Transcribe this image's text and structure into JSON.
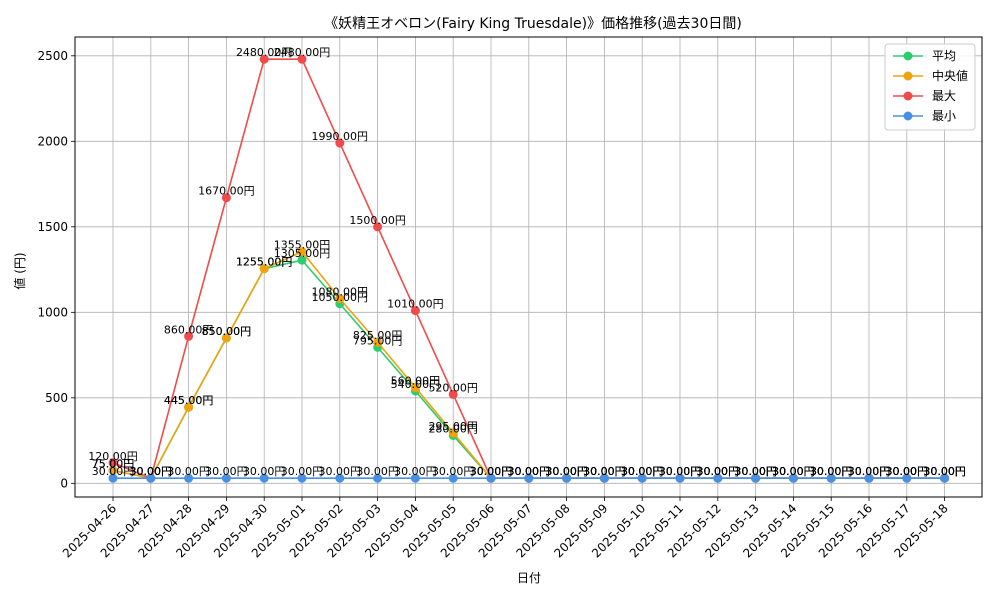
{
  "chart_data": {
    "type": "line",
    "title": "《妖精王オベロン(Fairy King Truesdale)》価格推移(過去30日間)",
    "xlabel": "日付",
    "ylabel": "値 (円)",
    "ylim": [
      -80,
      2610
    ],
    "yticks": [
      0,
      500,
      1000,
      1500,
      2000,
      2500
    ],
    "grid": true,
    "legend_position": "top-right",
    "categories": [
      "2025-04-26",
      "2025-04-27",
      "2025-04-28",
      "2025-04-29",
      "2025-04-30",
      "2025-05-01",
      "2025-05-02",
      "2025-05-03",
      "2025-05-04",
      "2025-05-05",
      "2025-05-06",
      "2025-05-07",
      "2025-05-08",
      "2025-05-09",
      "2025-05-10",
      "2025-05-11",
      "2025-05-12",
      "2025-05-13",
      "2025-05-14",
      "2025-05-15",
      "2025-05-16",
      "2025-05-17",
      "2025-05-18"
    ],
    "series": [
      {
        "name": "平均",
        "color": "#2ecc71",
        "values": [
          75,
          30,
          445,
          850,
          1255,
          1305,
          1050,
          795,
          540,
          280,
          30,
          30,
          30,
          30,
          30,
          30,
          30,
          30,
          30,
          30,
          30,
          30,
          30
        ]
      },
      {
        "name": "中央値",
        "color": "#f0a30a",
        "values": [
          75,
          30,
          445,
          850,
          1255,
          1355,
          1080,
          825,
          560,
          295,
          30,
          30,
          30,
          30,
          30,
          30,
          30,
          30,
          30,
          30,
          30,
          30,
          30
        ]
      },
      {
        "name": "最大",
        "color": "#ef4b4b",
        "values": [
          120,
          30,
          860,
          1670,
          2480,
          2480,
          1990,
          1500,
          1010,
          520,
          30,
          30,
          30,
          30,
          30,
          30,
          30,
          30,
          30,
          30,
          30,
          30,
          30
        ]
      },
      {
        "name": "最小",
        "color": "#4a90e2",
        "values": [
          30,
          30,
          30,
          30,
          30,
          30,
          30,
          30,
          30,
          30,
          30,
          30,
          30,
          30,
          30,
          30,
          30,
          30,
          30,
          30,
          30,
          30,
          30
        ]
      }
    ],
    "label_suffix": "円"
  }
}
